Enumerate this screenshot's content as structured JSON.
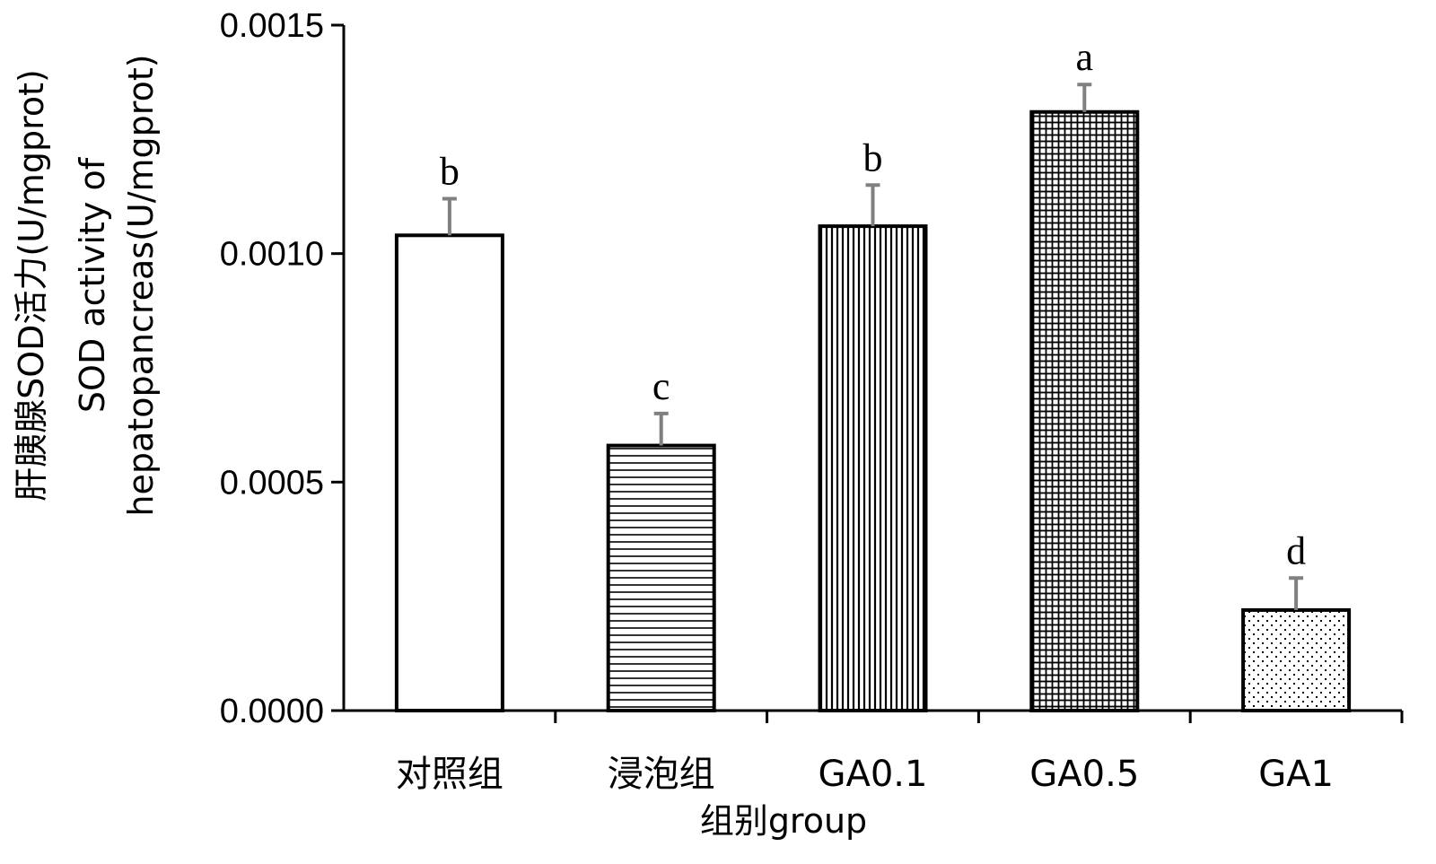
{
  "chart_data": {
    "type": "bar",
    "title": "",
    "categories": [
      "对照组",
      "浸泡组",
      "GA0.1",
      "GA0.5",
      "GA1"
    ],
    "values": [
      0.00104,
      0.00058,
      0.00106,
      0.00131,
      0.00022
    ],
    "errors": [
      8e-05,
      7e-05,
      9e-05,
      6e-05,
      7e-05
    ],
    "significance": [
      "b",
      "c",
      "b",
      "a",
      "d"
    ],
    "patterns": [
      "none",
      "horizontal",
      "vertical",
      "grid",
      "dots"
    ],
    "xlabel": "组别group",
    "ylabel_line1": "肝胰腺SOD活力(U/mgprot)",
    "ylabel_line2": "SOD activity of",
    "ylabel_line3": "hepatopancreas(U/mgprot)",
    "ylim": [
      0,
      0.0015
    ],
    "yticks": [
      "0.0000",
      "0.0005",
      "0.0010",
      "0.0015"
    ],
    "ytick_values": [
      0,
      0.0005,
      0.001,
      0.0015
    ],
    "bar_edge_color": "#000000",
    "error_bar_color": "#808080"
  }
}
